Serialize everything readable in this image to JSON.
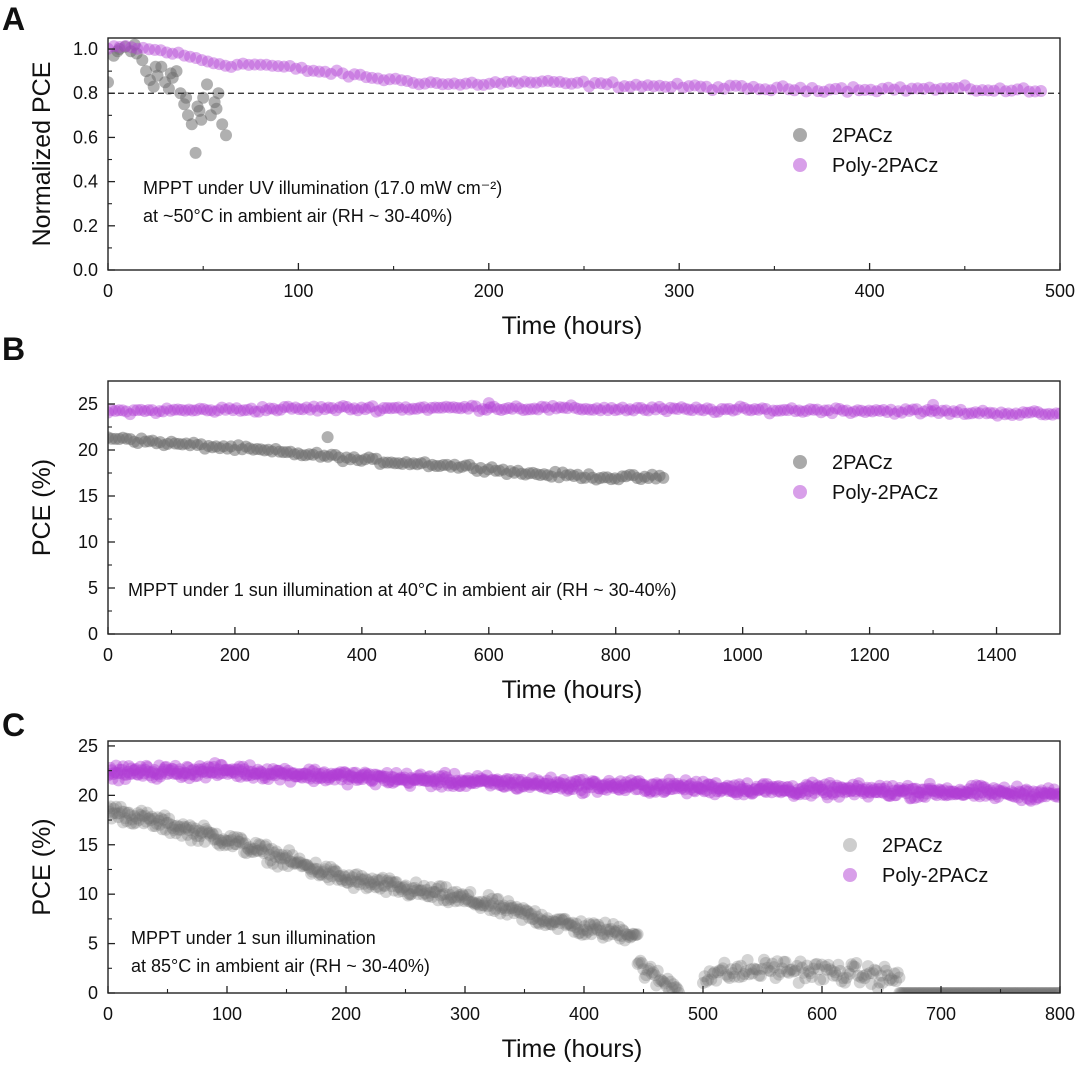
{
  "chart_data": [
    {
      "type": "scatter",
      "panel": "A",
      "xlabel": "Time (hours)",
      "ylabel": "Normalized PCE",
      "xlim": [
        0,
        500
      ],
      "ylim": [
        0,
        1.05
      ],
      "xticks": [
        "0",
        "100",
        "200",
        "300",
        "400",
        "500"
      ],
      "yticks": [
        "0.0",
        "0.2",
        "0.4",
        "0.6",
        "0.8",
        "1.0"
      ],
      "reference_line": {
        "y": 0.8,
        "style": "dashed"
      },
      "annotation": [
        "MPPT under  UV illumination (17.0 mW cm⁻²)",
        "at ~50°C in ambient air (RH ~ 30-40%)"
      ],
      "legend_position": "right-middle",
      "series": [
        {
          "name": "2PACz",
          "color": "#707070",
          "x": [
            0,
            3,
            6,
            9,
            12,
            15,
            18,
            20,
            22,
            24,
            26,
            28,
            30,
            32,
            34,
            36,
            38,
            40,
            42,
            44,
            46,
            47,
            48,
            50,
            52,
            54,
            56,
            58,
            60,
            62,
            5,
            14,
            25,
            33,
            41,
            49,
            57
          ],
          "y": [
            0.85,
            0.97,
            1.0,
            1.01,
            0.99,
            0.98,
            0.95,
            0.9,
            0.86,
            0.83,
            0.88,
            0.92,
            0.85,
            0.82,
            0.87,
            0.9,
            0.8,
            0.75,
            0.7,
            0.66,
            0.53,
            0.74,
            0.72,
            0.78,
            0.84,
            0.7,
            0.76,
            0.8,
            0.66,
            0.61,
            0.99,
            1.02,
            0.92,
            0.89,
            0.78,
            0.68,
            0.73
          ]
        },
        {
          "name": "Poly-2PACz",
          "color": "#b13fd3",
          "trend": {
            "x": [
              0,
              10,
              20,
              30,
              40,
              50,
              60,
              80,
              100,
              120,
              150,
              180,
              220,
              260,
              300,
              350,
              400,
              450,
              490
            ],
            "y": [
              1.0,
              1.01,
              1.0,
              0.99,
              0.97,
              0.95,
              0.93,
              0.93,
              0.91,
              0.89,
              0.86,
              0.84,
              0.85,
              0.84,
              0.83,
              0.82,
              0.82,
              0.82,
              0.81
            ]
          },
          "x_range": [
            0,
            490
          ],
          "n_points": 160,
          "noise": 0.01
        }
      ]
    },
    {
      "type": "scatter",
      "panel": "B",
      "xlabel": "Time (hours)",
      "ylabel": "PCE (%)",
      "xlim": [
        0,
        1500
      ],
      "ylim": [
        0,
        27.5
      ],
      "xticks": [
        "0",
        "200",
        "400",
        "600",
        "800",
        "1000",
        "1200",
        "1400"
      ],
      "yticks": [
        "0",
        "5",
        "10",
        "15",
        "20",
        "25"
      ],
      "annotation": [
        "MPPT under 1 sun illumination at 40°C in ambient air (RH ~ 30-40%)"
      ],
      "legend_position": "right-middle",
      "series": [
        {
          "name": "2PACz",
          "color": "#707070",
          "trend": {
            "x": [
              0,
              20,
              50,
              100,
              200,
              300,
              350,
              400,
              500,
              600,
              650,
              700,
              800,
              875
            ],
            "y": [
              21.2,
              21.4,
              21.0,
              20.7,
              20.2,
              19.6,
              19.3,
              18.9,
              18.5,
              18.0,
              17.5,
              17.3,
              17.0,
              17.0
            ]
          },
          "x_range": [
            0,
            875
          ],
          "n_points": 150,
          "noise": 0.25,
          "extra_points": {
            "x": [
              346
            ],
            "y": [
              21.4
            ]
          }
        },
        {
          "name": "Poly-2PACz",
          "color": "#b13fd3",
          "trend": {
            "x": [
              0,
              300,
              600,
              900,
              1200,
              1500
            ],
            "y": [
              24.2,
              24.5,
              24.6,
              24.4,
              24.3,
              23.9
            ]
          },
          "x_range": [
            0,
            1500
          ],
          "n_points": 260,
          "noise": 0.25,
          "extra_points": {
            "x": [
              600,
              1300
            ],
            "y": [
              25.1,
              24.9
            ]
          }
        }
      ]
    },
    {
      "type": "scatter",
      "panel": "C",
      "xlabel": "Time (hours)",
      "ylabel": "PCE (%)",
      "xlim": [
        0,
        800
      ],
      "ylim": [
        0,
        25.5
      ],
      "xticks": [
        "0",
        "100",
        "200",
        "300",
        "400",
        "500",
        "600",
        "700",
        "800"
      ],
      "yticks": [
        "0",
        "5",
        "10",
        "15",
        "20",
        "25"
      ],
      "annotation": [
        "MPPT under 1 sun illumination",
        "at 85°C in ambient air (RH ~ 30-40%)"
      ],
      "legend_position": "right-middle",
      "series": [
        {
          "name": "2PACz",
          "color": "#707070",
          "segments": [
            {
              "trend": {
                "x": [
                  0,
                  50,
                  100,
                  150,
                  200,
                  250,
                  300,
                  350,
                  400,
                  445
                ],
                "y": [
                  18.5,
                  17.0,
                  15.5,
                  13.5,
                  11.5,
                  10.5,
                  9.5,
                  8.0,
                  6.5,
                  6.0
                ]
              },
              "x_range": [
                0,
                445
              ],
              "n_points": 460,
              "noise": 0.7
            },
            {
              "trend": {
                "x": [
                  445,
                  460,
                  480
                ],
                "y": [
                  3.0,
                  1.5,
                  0.5
                ]
              },
              "x_range": [
                445,
                480
              ],
              "n_points": 30,
              "noise": 0.8
            },
            {
              "trend": {
                "x": [
                  500,
                  560,
                  620,
                  665
                ],
                "y": [
                  1.8,
                  2.5,
                  2.0,
                  1.5
                ]
              },
              "x_range": [
                500,
                665
              ],
              "n_points": 120,
              "noise": 0.9
            },
            {
              "trend": {
                "x": [
                  665,
                  800
                ],
                "y": [
                  0.0,
                  0.0
                ]
              },
              "x_range": [
                665,
                800
              ],
              "n_points": 120,
              "noise": 0.0
            }
          ]
        },
        {
          "name": "Poly-2PACz",
          "color": "#b13fd3",
          "trend": {
            "x": [
              0,
              100,
              200,
              300,
              400,
              500,
              600,
              700,
              800
            ],
            "y": [
              22.3,
              22.5,
              21.9,
              21.4,
              21.0,
              20.8,
              20.5,
              20.4,
              20.1
            ]
          },
          "x_range": [
            0,
            800
          ],
          "n_points": 820,
          "noise": 0.55
        }
      ]
    }
  ]
}
